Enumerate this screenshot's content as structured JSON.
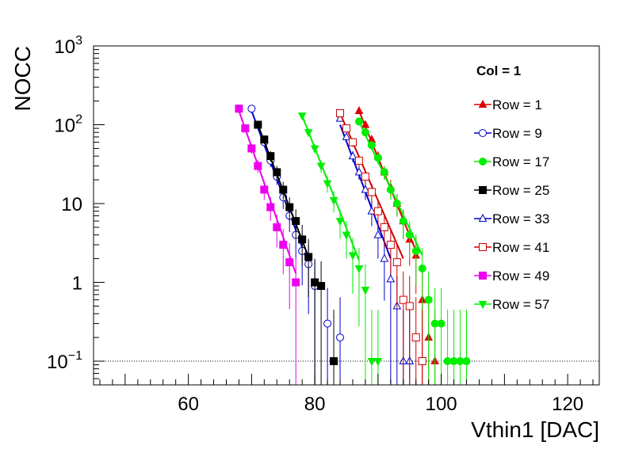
{
  "chart_data": {
    "type": "scatter",
    "title": "",
    "xlabel": "Vthin1 [DAC]",
    "ylabel": "NOCC",
    "xlim": [
      45,
      125
    ],
    "ylim": [
      0.05,
      1000
    ],
    "yscale": "log",
    "x_ticks": [
      60,
      80,
      100,
      120
    ],
    "x_tick_labels": [
      "60",
      "80",
      "100",
      "120"
    ],
    "y_ticks": [
      0.1,
      1,
      10,
      100,
      1000
    ],
    "y_tick_labels": [
      {
        "base": "10",
        "exp": "−1"
      },
      {
        "base": "1",
        "exp": ""
      },
      {
        "base": "10",
        "exp": ""
      },
      {
        "base": "10",
        "exp": "2"
      },
      {
        "base": "10",
        "exp": "3"
      }
    ],
    "reference_line": {
      "y": 0.1,
      "style": "dotted"
    },
    "legend_header": "Col = 1",
    "legend_position": "top-right",
    "grid": false,
    "series": [
      {
        "name": "Row = 1",
        "color": "#e00000",
        "marker": "triangle-up",
        "filled": true,
        "fit": {
          "x": [
            87,
            96
          ],
          "y": [
            150,
            2.5
          ]
        },
        "x": [
          87,
          88,
          89,
          90,
          91,
          92,
          93,
          94,
          95,
          96,
          97,
          98,
          99
        ],
        "y": [
          150,
          100,
          65,
          40,
          25,
          16,
          10,
          6,
          3.5,
          2.2,
          0.6,
          0.2,
          0.1
        ]
      },
      {
        "name": "Row = 9",
        "color": "#0000cc",
        "marker": "circle",
        "filled": false,
        "fit": {
          "x": [
            70,
            79
          ],
          "y": [
            150,
            1.7
          ]
        },
        "x": [
          70,
          71,
          72,
          73,
          74,
          75,
          76,
          77,
          78,
          79,
          80,
          82,
          84
        ],
        "y": [
          160,
          100,
          60,
          35,
          22,
          12,
          7,
          4,
          2.5,
          1.7,
          0.9,
          0.3,
          0.2
        ]
      },
      {
        "name": "Row = 17",
        "color": "#00ee00",
        "marker": "circle",
        "filled": true,
        "fit": {
          "x": [
            87,
            97
          ],
          "y": [
            110,
            2.2
          ]
        },
        "x": [
          87,
          88,
          89,
          90,
          91,
          92,
          93,
          94,
          95,
          96,
          97,
          98,
          99,
          100,
          101,
          102,
          103,
          104
        ],
        "y": [
          110,
          80,
          55,
          38,
          25,
          15,
          10,
          6,
          4,
          2.5,
          1.5,
          0.6,
          0.3,
          0.3,
          0.1,
          0.1,
          0.1,
          0.1
        ]
      },
      {
        "name": "Row = 25",
        "color": "#000000",
        "marker": "square",
        "filled": true,
        "fit": {
          "x": [
            71,
            79
          ],
          "y": [
            100,
            2.1
          ]
        },
        "x": [
          71,
          72,
          73,
          74,
          75,
          76,
          77,
          78,
          79,
          80,
          81,
          83
        ],
        "y": [
          100,
          65,
          40,
          25,
          15,
          9,
          6,
          3.5,
          2.1,
          1.0,
          0.9,
          0.1
        ]
      },
      {
        "name": "Row = 33",
        "color": "#0000cc",
        "marker": "triangle-up",
        "filled": false,
        "fit": {
          "x": [
            84,
            92
          ],
          "y": [
            100,
            2.0
          ]
        },
        "x": [
          84,
          85,
          86,
          87,
          88,
          89,
          90,
          91,
          92,
          93,
          94,
          95
        ],
        "y": [
          120,
          70,
          40,
          25,
          15,
          8,
          4,
          2,
          1.1,
          0.5,
          0.1,
          0.1
        ]
      },
      {
        "name": "Row = 41",
        "color": "#cc0000",
        "marker": "square",
        "filled": false,
        "fit": {
          "x": [
            84,
            94
          ],
          "y": [
            140,
            2.0
          ]
        },
        "x": [
          84,
          85,
          86,
          87,
          88,
          89,
          90,
          91,
          92,
          93,
          94,
          95,
          96,
          97
        ],
        "y": [
          140,
          90,
          60,
          35,
          22,
          14,
          8,
          5,
          3,
          1.8,
          0.6,
          0.5,
          0.2,
          0.1
        ]
      },
      {
        "name": "Row = 49",
        "color": "#ee00ee",
        "marker": "square",
        "filled": true,
        "fit": {
          "x": [
            68,
            77
          ],
          "y": [
            150,
            1.3
          ]
        },
        "x": [
          68,
          69,
          70,
          71,
          72,
          73,
          74,
          75,
          76,
          77
        ],
        "y": [
          160,
          90,
          50,
          30,
          15,
          9,
          5,
          3,
          1.8,
          1.0
        ]
      },
      {
        "name": "Row = 57",
        "color": "#00ee00",
        "marker": "triangle-down",
        "filled": true,
        "fit": {
          "x": [
            78,
            87
          ],
          "y": [
            130,
            1.9
          ]
        },
        "x": [
          78,
          79,
          80,
          81,
          82,
          83,
          84,
          85,
          86,
          87,
          88,
          89,
          90
        ],
        "y": [
          130,
          80,
          50,
          30,
          18,
          11,
          6,
          4,
          2.2,
          1.5,
          0.8,
          0.1,
          0.1
        ]
      }
    ]
  }
}
